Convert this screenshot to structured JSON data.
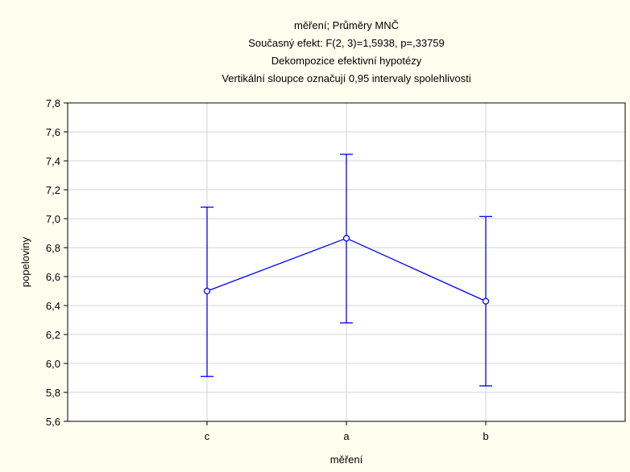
{
  "chart_data": {
    "type": "line",
    "title_lines": [
      "měření; Průměry MNČ",
      "Současný efekt: F(2, 3)=1,5938, p=,33759",
      "Dekompozice efektivní hypotézy",
      "Vertikální sloupce označují 0,95 intervaly spolehlivosti"
    ],
    "xlabel": "měření",
    "ylabel": "popeloviny",
    "categories": [
      "c",
      "a",
      "b"
    ],
    "series": [
      {
        "means": [
          6.5,
          6.865,
          6.43
        ],
        "ci_lower": [
          5.91,
          6.28,
          5.845
        ],
        "ci_upper": [
          7.08,
          7.445,
          7.015
        ]
      }
    ],
    "ylim": [
      5.6,
      7.8
    ],
    "yticks": [
      "5,6",
      "5,8",
      "6,0",
      "6,2",
      "6,4",
      "6,6",
      "6,8",
      "7,0",
      "7,2",
      "7,4",
      "7,6",
      "7,8"
    ],
    "grid": true,
    "colors": {
      "series": "#0000ff",
      "background": "#fffff0",
      "plot_background": "#ffffff",
      "grid": "#d3d3d3"
    }
  }
}
